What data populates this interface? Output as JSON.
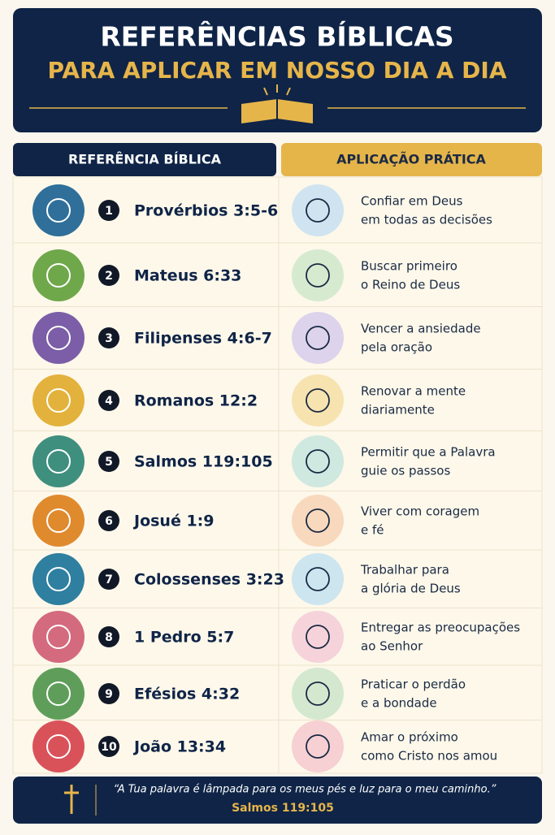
{
  "header": {
    "title": "REFERÊNCIAS BÍBLICAS",
    "subtitle": "PARA APLICAR EM NOSSO DIA A DIA"
  },
  "table": {
    "columns": [
      "REFERÊNCIA BÍBLICA",
      "APLICAÇÃO PRÁTICA"
    ],
    "rows": [
      {
        "number": 1,
        "reference": "Provérbios 3:5-6",
        "application": [
          "Confiar em Deus",
          "em todas as decisões"
        ]
      },
      {
        "number": 2,
        "reference": "Mateus 6:33",
        "application": [
          "Buscar primeiro",
          "o Reino de Deus"
        ]
      },
      {
        "number": 3,
        "reference": "Filipenses 4:6-7",
        "application": [
          "Vencer a ansiedade",
          "pela oração"
        ]
      },
      {
        "number": 4,
        "reference": "Romanos 12:2",
        "application": [
          "Renovar a mente",
          "diariamente"
        ]
      },
      {
        "number": 5,
        "reference": "Salmos 119:105",
        "application": [
          "Permitir que a Palavra",
          "guie os passos"
        ]
      },
      {
        "number": 6,
        "reference": "Josué 1:9",
        "application": [
          "Viver com coragem",
          "e fé"
        ]
      },
      {
        "number": 7,
        "reference": "Colossenses 3:23",
        "application": [
          "Trabalhar para",
          "a glória de Deus"
        ]
      },
      {
        "number": 8,
        "reference": "1 Pedro 5:7",
        "application": [
          "Entregar as preocupações",
          "ao Senhor"
        ]
      },
      {
        "number": 9,
        "reference": "Efésios 4:32",
        "application": [
          "Praticar o perdão",
          "e a bondade"
        ]
      },
      {
        "number": 10,
        "reference": "João 13:34",
        "application": [
          "Amar o próximo",
          "como Cristo nos amou"
        ]
      }
    ]
  },
  "footer": {
    "quote": "“A Tua palavra é lâmpada para os meus pés e luz para o meu caminho.”",
    "reference": "Salmos 119:105"
  }
}
